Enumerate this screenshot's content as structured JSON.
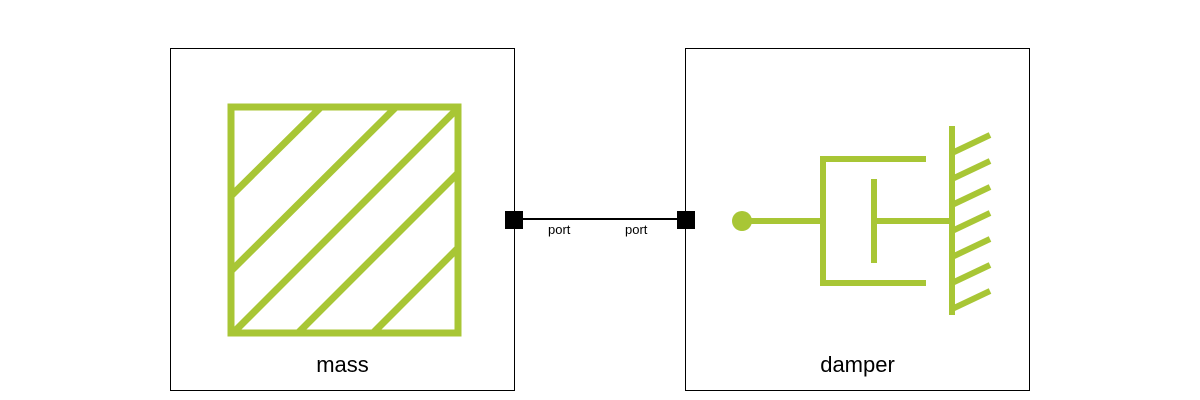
{
  "blocks": {
    "mass": {
      "label": "mass"
    },
    "damper": {
      "label": "damper"
    }
  },
  "ports": {
    "mass_port": {
      "label": "port"
    },
    "damper_port": {
      "label": "port"
    }
  },
  "colors": {
    "icon": "#a8c635",
    "line": "#000000"
  },
  "icons": {
    "mass": "hatched-mass-icon",
    "damper": "damper-grounded-icon"
  }
}
